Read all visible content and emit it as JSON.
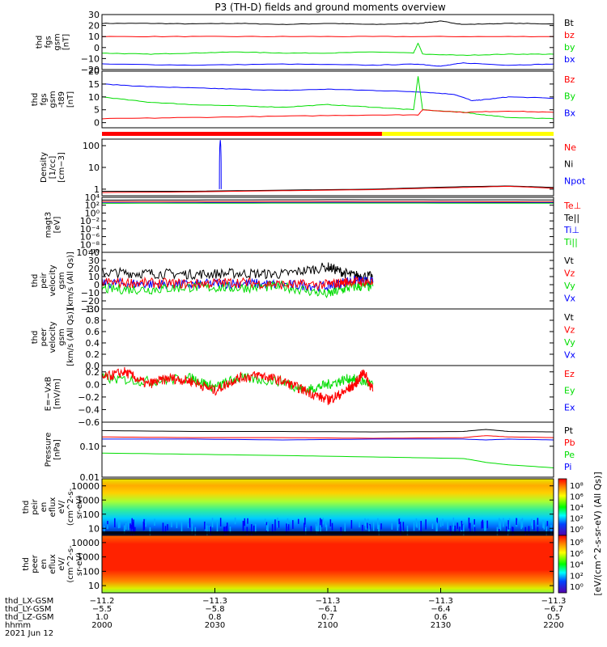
{
  "title": "P3 (TH-D) fields and ground moments overview",
  "colors": {
    "black": "#000000",
    "red": "#ff0000",
    "green": "#00dd00",
    "blue": "#0000ff"
  },
  "bars": {
    "red_fraction": 0.62,
    "yellow_fraction": 0.38
  },
  "panels": [
    {
      "ylabel": [
        "thd",
        "fgs",
        "gsm",
        "[nT]"
      ],
      "type": "line",
      "ylim": [
        -20,
        30
      ],
      "ticks": [
        "30",
        "20",
        "10",
        "0",
        "−10",
        "−20"
      ],
      "tick_values": [
        30,
        20,
        10,
        0,
        -10,
        -20
      ],
      "legend": [
        {
          "label": "Bt",
          "color": "black"
        },
        {
          "label": "bz",
          "color": "red"
        },
        {
          "label": "by",
          "color": "green"
        },
        {
          "label": "bx",
          "color": "blue"
        }
      ],
      "series": [
        {
          "color": "black",
          "x": [
            0,
            0.1,
            0.2,
            0.3,
            0.4,
            0.5,
            0.6,
            0.7,
            0.75,
            0.8,
            0.9,
            1.0
          ],
          "y": [
            22,
            22,
            21.5,
            22,
            21,
            22,
            21,
            22,
            24,
            21,
            22,
            21.5
          ]
        },
        {
          "color": "red",
          "x": [
            0,
            0.2,
            0.4,
            0.6,
            0.8,
            1.0
          ],
          "y": [
            10,
            10,
            10,
            10,
            10,
            10
          ]
        },
        {
          "color": "green",
          "x": [
            0,
            0.1,
            0.2,
            0.3,
            0.4,
            0.5,
            0.6,
            0.69,
            0.7,
            0.71,
            0.8,
            0.9,
            1.0
          ],
          "y": [
            -5,
            -6,
            -5,
            -4,
            -5,
            -5,
            -4,
            -5,
            4,
            -6,
            -7,
            -6,
            -6
          ]
        },
        {
          "color": "blue",
          "x": [
            0,
            0.2,
            0.4,
            0.6,
            0.7,
            0.75,
            0.8,
            0.9,
            1.0
          ],
          "y": [
            -15,
            -16,
            -15,
            -16,
            -15,
            -17,
            -14,
            -16,
            -15
          ]
        }
      ]
    },
    {
      "ylabel": [
        "thd",
        "fgs",
        "gsm",
        "-t89",
        "[nT]"
      ],
      "type": "line",
      "ylim": [
        -2,
        20
      ],
      "ticks": [
        "20",
        "15",
        "10",
        "5",
        "0"
      ],
      "tick_values": [
        20,
        15,
        10,
        5,
        0
      ],
      "legend": [
        {
          "label": "Bz",
          "color": "red"
        },
        {
          "label": "By",
          "color": "green"
        },
        {
          "label": "Bx",
          "color": "blue"
        }
      ],
      "series": [
        {
          "color": "blue",
          "x": [
            0,
            0.1,
            0.2,
            0.3,
            0.4,
            0.5,
            0.6,
            0.7,
            0.78,
            0.82,
            0.85,
            0.9,
            1.0
          ],
          "y": [
            15,
            14,
            13.5,
            13,
            12.5,
            13,
            12.5,
            12,
            11,
            8.5,
            9,
            10,
            9.5
          ]
        },
        {
          "color": "green",
          "x": [
            0,
            0.1,
            0.2,
            0.3,
            0.4,
            0.5,
            0.6,
            0.69,
            0.7,
            0.71,
            0.8,
            0.85,
            0.9,
            1.0
          ],
          "y": [
            10,
            8,
            7,
            6.5,
            6,
            7,
            6,
            5,
            18,
            5,
            4,
            3,
            2,
            1.5
          ]
        },
        {
          "color": "red",
          "x": [
            0,
            0.2,
            0.4,
            0.6,
            0.7,
            0.71,
            0.8,
            0.9,
            1.0
          ],
          "y": [
            1.5,
            2,
            2.5,
            3,
            3,
            5,
            4,
            4.5,
            4
          ]
        }
      ]
    },
    {
      "ylabel": [
        "Density",
        "[1/cc]",
        "[cm−3]"
      ],
      "type": "line",
      "log": true,
      "ylim": [
        0.5,
        200
      ],
      "ticks": [
        "100",
        "10",
        "1"
      ],
      "tick_values": [
        100,
        10,
        1
      ],
      "legend": [
        {
          "label": "Ne",
          "color": "red"
        },
        {
          "label": "Ni",
          "color": "black"
        },
        {
          "label": "Npot",
          "color": "blue"
        }
      ],
      "series": [
        {
          "color": "black",
          "x": [
            0,
            0.2,
            0.4,
            0.6,
            0.8,
            0.9,
            1.0
          ],
          "y": [
            0.8,
            0.8,
            0.9,
            1.0,
            1.3,
            1.4,
            1.2
          ]
        },
        {
          "color": "red",
          "x": [
            0,
            0.2,
            0.4,
            0.6,
            0.8,
            0.9,
            1.0
          ],
          "y": [
            0.7,
            0.75,
            0.85,
            0.95,
            1.2,
            1.35,
            1.1
          ]
        },
        {
          "color": "blue",
          "x": [
            0.26,
            0.262,
            0.264
          ],
          "y": [
            1,
            180,
            1
          ]
        }
      ]
    },
    {
      "ylabel": [
        "magt3",
        "[eV]"
      ],
      "type": "line",
      "log": true,
      "ylim": [
        1e-10,
        10000.0
      ],
      "ticks": [
        "10⁴",
        "10²",
        "10⁰",
        "10⁻²",
        "10⁻⁴",
        "10⁻⁶",
        "10⁻⁸",
        "10⁻¹⁰"
      ],
      "tick_values": [
        10000.0,
        100.0,
        1,
        0.01,
        0.0001,
        1e-06,
        1e-08,
        1e-10
      ],
      "legend": [
        {
          "label": "Te⊥",
          "color": "red"
        },
        {
          "label": "Te||",
          "color": "black"
        },
        {
          "label": "Ti⊥",
          "color": "blue"
        },
        {
          "label": "Ti||",
          "color": "green"
        }
      ],
      "series": [
        {
          "color": "black",
          "x": [
            0,
            0.5,
            1.0
          ],
          "y": [
            2000,
            2500,
            2200
          ]
        },
        {
          "color": "red",
          "x": [
            0,
            0.5,
            1.0
          ],
          "y": [
            800,
            900,
            700
          ]
        },
        {
          "color": "blue",
          "x": [
            0,
            0.5,
            1.0
          ],
          "y": [
            400,
            500,
            450
          ]
        },
        {
          "color": "green",
          "x": [
            0,
            0.5,
            1.0
          ],
          "y": [
            300,
            350,
            320
          ]
        }
      ]
    },
    {
      "ylabel": [
        "thd",
        "peir",
        "velocity",
        "gsm",
        "[km/s (All Qs)]"
      ],
      "type": "line",
      "ylim": [
        -30,
        40
      ],
      "ticks": [
        "40",
        "30",
        "20",
        "10",
        "0",
        "−10",
        "−20",
        "−30"
      ],
      "tick_values": [
        40,
        30,
        20,
        10,
        0,
        -10,
        -20,
        -30
      ],
      "legend": [
        {
          "label": "Vt",
          "color": "black"
        },
        {
          "label": "Vz",
          "color": "red"
        },
        {
          "label": "Vy",
          "color": "green"
        },
        {
          "label": "Vx",
          "color": "blue"
        }
      ],
      "series": [
        {
          "color": "black",
          "x": [
            0,
            0.1,
            0.2,
            0.3,
            0.4,
            0.5,
            0.55,
            0.6
          ],
          "y": [
            15,
            14,
            13,
            14,
            13,
            22,
            12,
            10
          ]
        },
        {
          "color": "blue",
          "x": [
            0,
            0.1,
            0.2,
            0.3,
            0.4,
            0.5,
            0.55,
            0.6
          ],
          "y": [
            2,
            1,
            0,
            2,
            0,
            -2,
            5,
            3
          ]
        },
        {
          "color": "green",
          "x": [
            0,
            0.1,
            0.2,
            0.3,
            0.4,
            0.5,
            0.55,
            0.6
          ],
          "y": [
            -5,
            -6,
            -3,
            -4,
            -2,
            -12,
            -3,
            -2
          ]
        },
        {
          "color": "red",
          "x": [
            0,
            0.1,
            0.2,
            0.3,
            0.4,
            0.5,
            0.55,
            0.6
          ],
          "y": [
            3,
            2,
            1,
            3,
            0,
            0,
            4,
            3
          ]
        }
      ]
    },
    {
      "ylabel": [
        "thd",
        "peer",
        "velocity",
        "gsm",
        "[km/s (All Qs)]"
      ],
      "type": "line",
      "ylim": [
        0,
        1
      ],
      "ticks": [
        "1.0",
        "0.8",
        "0.6",
        "0.4",
        "0.2",
        "0.0"
      ],
      "tick_values": [
        1.0,
        0.8,
        0.6,
        0.4,
        0.2,
        0.0
      ],
      "legend": [
        {
          "label": "Vt",
          "color": "black"
        },
        {
          "label": "Vz",
          "color": "red"
        },
        {
          "label": "Vy",
          "color": "green"
        },
        {
          "label": "Vx",
          "color": "blue"
        }
      ],
      "series": []
    },
    {
      "ylabel": [
        "E=−VxB",
        "[mV/m]"
      ],
      "type": "line",
      "ylim": [
        -0.6,
        0.3
      ],
      "ticks": [
        "0.2",
        "0.0",
        "−0.2",
        "−0.4",
        "−0.6"
      ],
      "tick_values": [
        0.2,
        0.0,
        -0.2,
        -0.4,
        -0.6
      ],
      "legend": [
        {
          "label": "Ez",
          "color": "red"
        },
        {
          "label": "Ey",
          "color": "green"
        },
        {
          "label": "Ex",
          "color": "blue"
        }
      ],
      "series": [
        {
          "color": "green",
          "x": [
            0,
            0.1,
            0.2,
            0.25,
            0.3,
            0.4,
            0.45,
            0.5,
            0.55,
            0.6
          ],
          "y": [
            0.1,
            0.05,
            0.1,
            -0.05,
            0.1,
            0.05,
            -0.1,
            0.0,
            0.1,
            0.0
          ]
        },
        {
          "color": "red",
          "x": [
            0,
            0.05,
            0.1,
            0.15,
            0.2,
            0.25,
            0.3,
            0.35,
            0.4,
            0.45,
            0.5,
            0.53,
            0.56,
            0.58,
            0.6
          ],
          "y": [
            0.1,
            0.2,
            0.0,
            0.1,
            0.05,
            -0.1,
            0.1,
            0.15,
            0.05,
            -0.1,
            -0.25,
            -0.15,
            0.0,
            0.2,
            -0.1
          ]
        }
      ]
    },
    {
      "ylabel": [
        "Pressure",
        "[nPa]"
      ],
      "type": "line",
      "log": true,
      "ylim": [
        0.01,
        0.6
      ],
      "ticks": [
        "0.10",
        "0.01"
      ],
      "tick_values": [
        0.1,
        0.01
      ],
      "legend": [
        {
          "label": "Pt",
          "color": "black"
        },
        {
          "label": "Pb",
          "color": "red"
        },
        {
          "label": "Pe",
          "color": "green"
        },
        {
          "label": "Pi",
          "color": "blue"
        }
      ],
      "series": [
        {
          "color": "black",
          "x": [
            0,
            0.2,
            0.4,
            0.6,
            0.8,
            0.85,
            0.9,
            1.0
          ],
          "y": [
            0.32,
            0.3,
            0.3,
            0.29,
            0.3,
            0.35,
            0.3,
            0.29
          ]
        },
        {
          "color": "red",
          "x": [
            0,
            0.2,
            0.4,
            0.6,
            0.8,
            0.85,
            0.9,
            1.0
          ],
          "y": [
            0.2,
            0.19,
            0.19,
            0.18,
            0.19,
            0.22,
            0.2,
            0.19
          ]
        },
        {
          "color": "blue",
          "x": [
            0,
            0.2,
            0.4,
            0.6,
            0.8,
            0.85,
            0.9,
            1.0
          ],
          "y": [
            0.17,
            0.17,
            0.16,
            0.17,
            0.17,
            0.16,
            0.17,
            0.16
          ]
        },
        {
          "color": "green",
          "x": [
            0,
            0.2,
            0.4,
            0.6,
            0.8,
            0.85,
            0.9,
            1.0
          ],
          "y": [
            0.06,
            0.055,
            0.05,
            0.045,
            0.04,
            0.03,
            0.025,
            0.02
          ]
        }
      ]
    },
    {
      "ylabel": [
        "thd",
        "peir",
        "en",
        "eflux",
        "eV/",
        "(cm^2-s-",
        "sr-eV)"
      ],
      "type": "heatmap",
      "ticks": [
        "10000",
        "1000",
        "100",
        "10"
      ],
      "log": true,
      "ylim": [
        5,
        20000
      ]
    },
    {
      "ylabel": [
        "thd",
        "peer",
        "en",
        "eflux",
        "eV/",
        "(cm^2-s-",
        "sr-eV)"
      ],
      "type": "heatmap",
      "ticks": [
        "10000",
        "1000",
        "100",
        "10"
      ],
      "log": true,
      "ylim": [
        5,
        20000
      ]
    }
  ],
  "colorbar": {
    "label": "[eV/(cm^2-s-sr-eV) (All Qs)]",
    "ticks": [
      "10⁸",
      "10⁶",
      "10⁴",
      "10²",
      "10⁰"
    ],
    "ticks2": [
      "10⁸",
      "10⁶",
      "10⁴",
      "10²",
      "10⁰"
    ]
  },
  "xaxis": {
    "rows": [
      {
        "label": "thd_LX-GSM",
        "values": [
          "−11.2",
          "−11.3",
          "−11.3",
          "−11.3",
          "−11.3"
        ]
      },
      {
        "label": "thd_LY-GSM",
        "values": [
          "−5.5",
          "−5.8",
          "−6.1",
          "−6.4",
          "−6.7"
        ]
      },
      {
        "label": "thd_LZ-GSM",
        "values": [
          "1.0",
          "0.8",
          "0.7",
          "0.6",
          "0.5"
        ]
      },
      {
        "label": "hhmm",
        "values": [
          "2000",
          "2030",
          "2100",
          "2130",
          "2200"
        ]
      }
    ],
    "date": "2021 Jun 12"
  },
  "chart_data": {
    "type": "line",
    "title": "P3 (TH-D) fields and ground moments overview",
    "x_time_ticks": [
      "2000",
      "2030",
      "2100",
      "2130",
      "2200"
    ],
    "date": "2021 Jun 12"
  }
}
